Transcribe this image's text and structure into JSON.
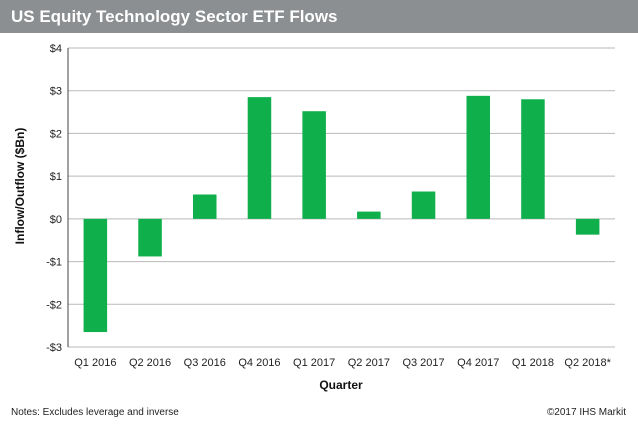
{
  "header": {
    "title": "US Equity Technology Sector ETF Flows"
  },
  "footer": {
    "note": "Notes: Excludes leverage and inverse",
    "credit": "©2017 IHS Markit"
  },
  "chart_data": {
    "type": "bar",
    "title": "US Equity Technology Sector ETF Flows",
    "xlabel": "Quarter",
    "ylabel": "Inflow/Outflow ($Bn)",
    "categories": [
      "Q1 2016",
      "Q2 2016",
      "Q3 2016",
      "Q4 2016",
      "Q1 2017",
      "Q2 2017",
      "Q3 2017",
      "Q4 2017",
      "Q1 2018",
      "Q2 2018*"
    ],
    "values": [
      -2.65,
      -0.88,
      0.57,
      2.85,
      2.52,
      0.17,
      0.64,
      2.88,
      2.8,
      -0.37
    ],
    "ylim": [
      -3,
      4
    ],
    "yticks": [
      -3,
      -2,
      -1,
      0,
      1,
      2,
      3,
      4
    ],
    "ytick_labels": [
      "-$3",
      "-$2",
      "-$1",
      "$0",
      "$1",
      "$2",
      "$3",
      "$4"
    ],
    "grid": true,
    "legend": "none",
    "colors": {
      "bar": "#0fb04b",
      "grid": "#b9b9b9",
      "title_bar": "#8c8f91"
    }
  }
}
